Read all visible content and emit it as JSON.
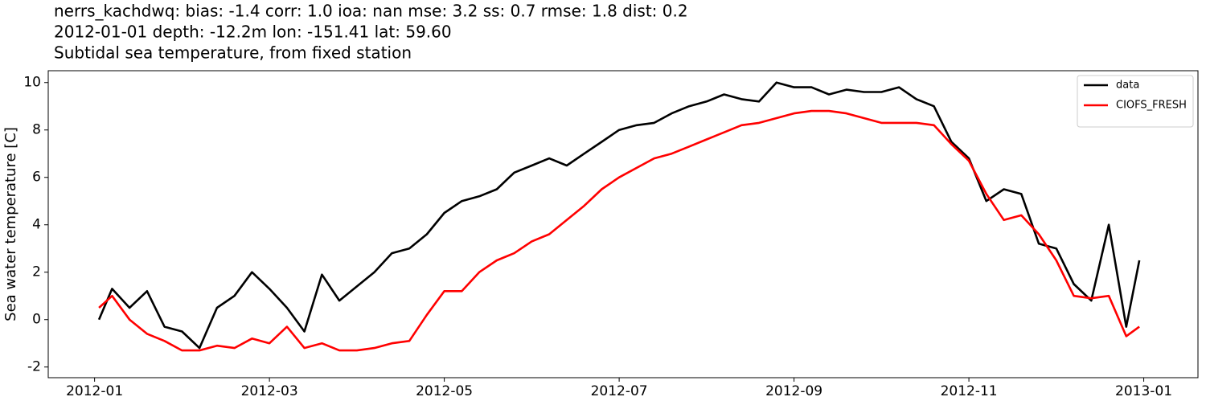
{
  "chart_data": {
    "type": "line",
    "title": "nerrs_kachdwq: bias: -1.4  corr: 1.0  ioa: nan  mse: 3.2  ss: 0.7  rmse: 1.8  dist: 0.2",
    "subtitle": "2012-01-01 depth: -12.2m lon: -151.41 lat: 59.60",
    "subtitle2": "Subtidal sea temperature, from fixed station",
    "ylabel": "Sea water temperature [C]",
    "x": [
      0.05,
      0.2,
      0.4,
      0.6,
      0.8,
      1.0,
      1.2,
      1.4,
      1.6,
      1.8,
      2.0,
      2.2,
      2.4,
      2.6,
      2.8,
      3.0,
      3.2,
      3.4,
      3.6,
      3.8,
      4.0,
      4.2,
      4.4,
      4.6,
      4.8,
      5.0,
      5.2,
      5.4,
      5.6,
      5.8,
      6.0,
      6.2,
      6.4,
      6.6,
      6.8,
      7.0,
      7.2,
      7.4,
      7.6,
      7.8,
      8.0,
      8.2,
      8.4,
      8.6,
      8.8,
      9.0,
      9.2,
      9.4,
      9.6,
      9.8,
      10.0,
      10.2,
      10.4,
      10.6,
      10.8,
      11.0,
      11.2,
      11.4,
      11.6,
      11.8,
      11.95
    ],
    "series": [
      {
        "name": "data",
        "color": "#000000",
        "values": [
          0,
          1.3,
          0.5,
          1.2,
          -0.3,
          -0.5,
          -1.2,
          0.5,
          1.0,
          2.0,
          1.3,
          0.5,
          -0.5,
          1.9,
          0.8,
          1.4,
          2.0,
          2.8,
          3.0,
          3.6,
          4.5,
          5.0,
          5.2,
          5.5,
          6.2,
          6.5,
          6.8,
          6.5,
          7.0,
          7.5,
          8.0,
          8.2,
          8.3,
          8.7,
          9.0,
          9.2,
          9.5,
          9.3,
          9.2,
          10.0,
          9.8,
          9.8,
          9.5,
          9.7,
          9.6,
          9.6,
          9.8,
          9.3,
          9.0,
          7.5,
          6.8,
          5.0,
          5.5,
          5.3,
          3.2,
          3.0,
          1.5,
          0.8,
          4.0,
          -0.3,
          2.5
        ]
      },
      {
        "name": "CIOFS_FRESH",
        "color": "#ff0000",
        "values": [
          0.5,
          1.0,
          0.0,
          -0.6,
          -0.9,
          -1.3,
          -1.3,
          -1.1,
          -1.2,
          -0.8,
          -1.0,
          -0.3,
          -1.2,
          -1.0,
          -1.3,
          -1.3,
          -1.2,
          -1.0,
          -0.9,
          0.2,
          1.2,
          1.2,
          2.0,
          2.5,
          2.8,
          3.3,
          3.6,
          4.2,
          4.8,
          5.5,
          6.0,
          6.4,
          6.8,
          7.0,
          7.3,
          7.6,
          7.9,
          8.2,
          8.3,
          8.5,
          8.7,
          8.8,
          8.8,
          8.7,
          8.5,
          8.3,
          8.3,
          8.3,
          8.2,
          7.4,
          6.7,
          5.3,
          4.2,
          4.4,
          3.6,
          2.5,
          1.0,
          0.9,
          1.0,
          -0.7,
          -0.3
        ]
      }
    ],
    "xlim": [
      -0.53,
      12.62
    ],
    "xticks": [
      {
        "value": 0,
        "label": "2012-01"
      },
      {
        "value": 2,
        "label": "2012-03"
      },
      {
        "value": 4,
        "label": "2012-05"
      },
      {
        "value": 6,
        "label": "2012-07"
      },
      {
        "value": 8,
        "label": "2012-09"
      },
      {
        "value": 10,
        "label": "2012-11"
      },
      {
        "value": 12,
        "label": "2013-01"
      }
    ],
    "ylim": [
      -2.45,
      10.5
    ],
    "yticks": [
      -2,
      0,
      2,
      4,
      6,
      8,
      10
    ],
    "legend": "upper right"
  }
}
